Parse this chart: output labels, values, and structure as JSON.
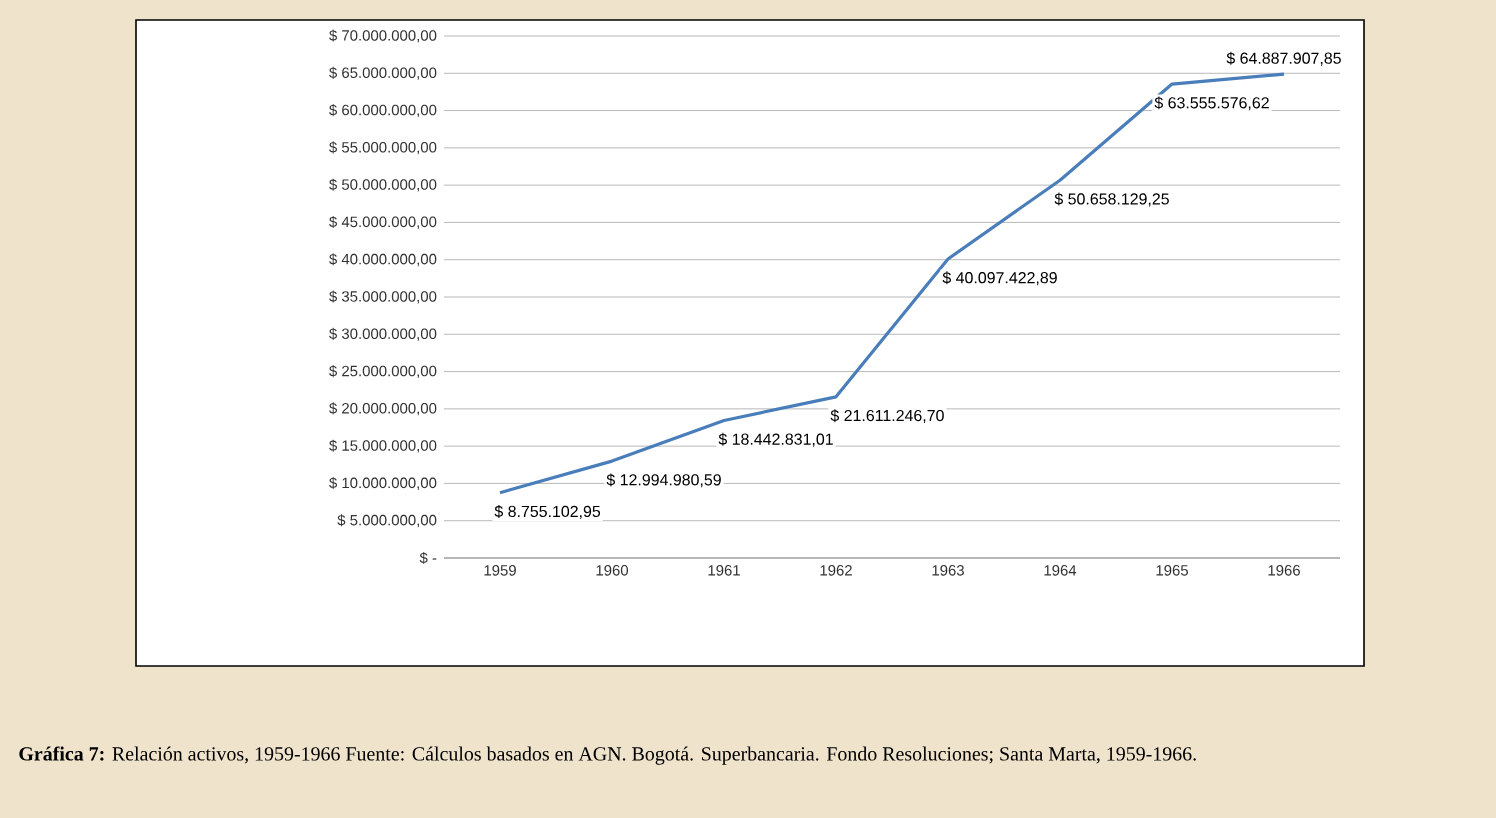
{
  "chart_data": {
    "type": "line",
    "categories": [
      "1959",
      "1960",
      "1961",
      "1962",
      "1963",
      "1964",
      "1965",
      "1966"
    ],
    "values": [
      8755102.95,
      12994980.59,
      18442831.01,
      21611246.7,
      40097422.89,
      50658129.25,
      63555576.62,
      64887907.85
    ],
    "value_labels": [
      "$ 8.755.102,95",
      "$ 12.994.980,59",
      "$ 18.442.831,01",
      "$ 21.611.246,70",
      "$ 40.097.422,89",
      "$ 50.658.129,25",
      "$ 63.555.576,62",
      "$ 64.887.907,85"
    ],
    "color": "#4a7ebb",
    "marker": "none",
    "line_style": "solid",
    "grid": "y",
    "ylim": [
      0,
      70000000
    ],
    "yticks": [
      {
        "value": 0,
        "label": "$ -"
      },
      {
        "value": 5000000,
        "label": "$ 5.000.000,00"
      },
      {
        "value": 10000000,
        "label": "$ 10.000.000,00"
      },
      {
        "value": 15000000,
        "label": "$ 15.000.000,00"
      },
      {
        "value": 20000000,
        "label": "$ 20.000.000,00"
      },
      {
        "value": 25000000,
        "label": "$ 25.000.000,00"
      },
      {
        "value": 30000000,
        "label": "$ 30.000.000,00"
      },
      {
        "value": 35000000,
        "label": "$ 35.000.000,00"
      },
      {
        "value": 40000000,
        "label": "$ 40.000.000,00"
      },
      {
        "value": 45000000,
        "label": "$ 45.000.000,00"
      },
      {
        "value": 50000000,
        "label": "$ 50.000.000,00"
      },
      {
        "value": 55000000,
        "label": "$ 55.000.000,00"
      },
      {
        "value": 60000000,
        "label": "$ 60.000.000,00"
      },
      {
        "value": 65000000,
        "label": "$ 65.000.000,00"
      },
      {
        "value": 70000000,
        "label": "$ 70.000.000,00"
      }
    ],
    "annotations": [
      "**Gráfica 7:** Relación activos, 1959-1966 Fuente: Cálculos basados en AGN. Bogotá. Superbancaria. Fondo Resoluciones; Santa Marta, 1959-1966."
    ]
  }
}
